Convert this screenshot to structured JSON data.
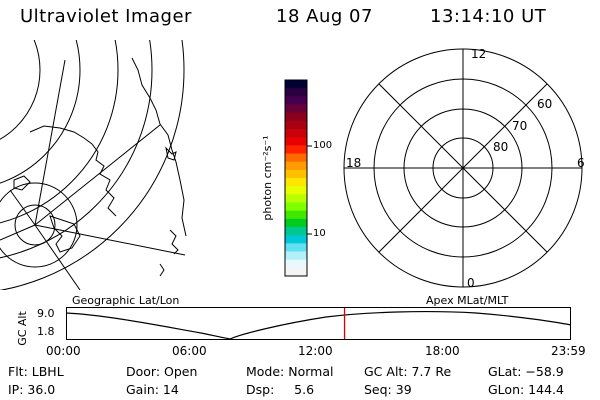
{
  "header": {
    "instrument": "Ultraviolet Imager",
    "date": "18 Aug 07",
    "time": "13:14:10 UT"
  },
  "colorbar": {
    "label": "photon cm⁻²s⁻¹",
    "ticks": [
      "100",
      "10"
    ],
    "colors": [
      "#000033",
      "#2a0040",
      "#44004e",
      "#6a0038",
      "#8a001c",
      "#a80010",
      "#c8000a",
      "#e80000",
      "#ff2200",
      "#ff6a00",
      "#ff9a00",
      "#ffc000",
      "#ffe600",
      "#e8ff00",
      "#b8ff00",
      "#80ff00",
      "#40e800",
      "#00cc20",
      "#00c890",
      "#00c8d8",
      "#60e0f0",
      "#b0f0f8",
      "#e8f8fc",
      "#f4f4f4"
    ]
  },
  "polar_plot": {
    "lat_labels": [
      "60",
      "70",
      "80"
    ],
    "mlt_labels": [
      "12",
      "18",
      "6",
      "0"
    ]
  },
  "timeline": {
    "left_label": "Geographic Lat/Lon",
    "right_label": "Apex MLat/MLT",
    "y_axis_label": "GC Alt",
    "y_ticks": [
      "9.0",
      "1.8"
    ],
    "x_ticks": [
      "00:00",
      "06:00",
      "12:00",
      "18:00",
      "23:59"
    ],
    "current_time_hours": 13.24,
    "cursor_color": "#dd0000"
  },
  "status": {
    "filter": "Flt: LBHL",
    "ip": "IP: 36.0",
    "door": "Door: Open",
    "gain": "Gain: 14",
    "mode": "Mode: Normal",
    "dsp": "Dsp:     5.6",
    "gc_alt": "GC Alt: 7.7 Re",
    "seq": "Seq: 39",
    "glat": "GLat: −58.9",
    "glon": "GLon: 144.4"
  }
}
